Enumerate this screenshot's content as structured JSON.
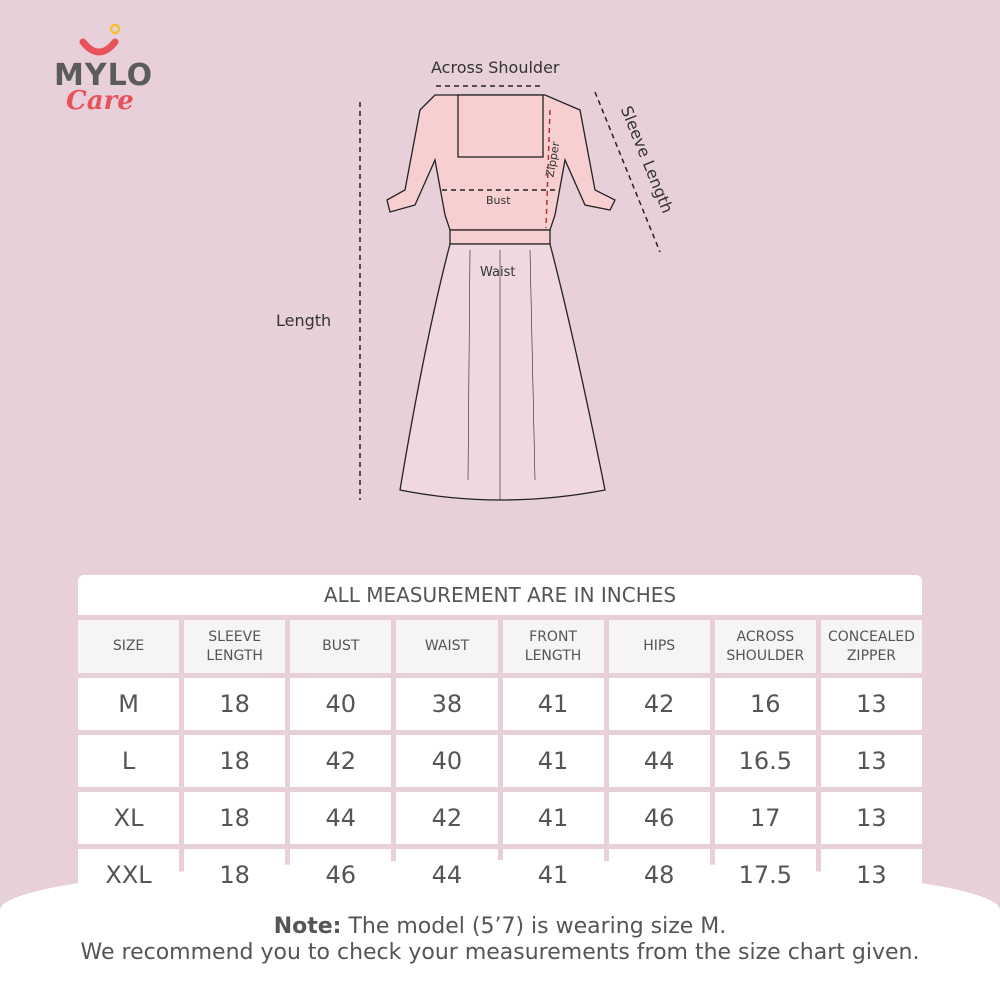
{
  "brand": {
    "name": "MYLO",
    "sub": "Care",
    "colors": {
      "red": "#e8525a",
      "gray": "#5b5b5b",
      "yellow": "#f2c230"
    }
  },
  "diagram": {
    "across_shoulder": "Across Shoulder",
    "sleeve_length": "Sleeve Length",
    "zipper": "Zipper",
    "bust": "Bust",
    "waist": "Waist",
    "length": "Length"
  },
  "table": {
    "title": "ALL MEASUREMENT ARE IN INCHES",
    "headers": [
      [
        "SIZE",
        ""
      ],
      [
        "SLEEVE",
        "LENGTH"
      ],
      [
        "BUST",
        ""
      ],
      [
        "WAIST",
        ""
      ],
      [
        "FRONT",
        "LENGTH"
      ],
      [
        "HIPS",
        ""
      ],
      [
        "ACROSS",
        "SHOULDER"
      ],
      [
        "CONCEALED",
        "ZIPPER"
      ]
    ],
    "rows": [
      [
        "M",
        "18",
        "40",
        "38",
        "41",
        "42",
        "16",
        "13"
      ],
      [
        "L",
        "18",
        "42",
        "40",
        "41",
        "44",
        "16.5",
        "13"
      ],
      [
        "XL",
        "18",
        "44",
        "42",
        "41",
        "46",
        "17",
        "13"
      ],
      [
        "XXL",
        "18",
        "46",
        "44",
        "41",
        "48",
        "17.5",
        "13"
      ]
    ]
  },
  "note": {
    "bold": "Note:",
    "line1": " The model (5’7) is wearing size M.",
    "line2": "We recommend you to check your measurements from the size chart given."
  }
}
